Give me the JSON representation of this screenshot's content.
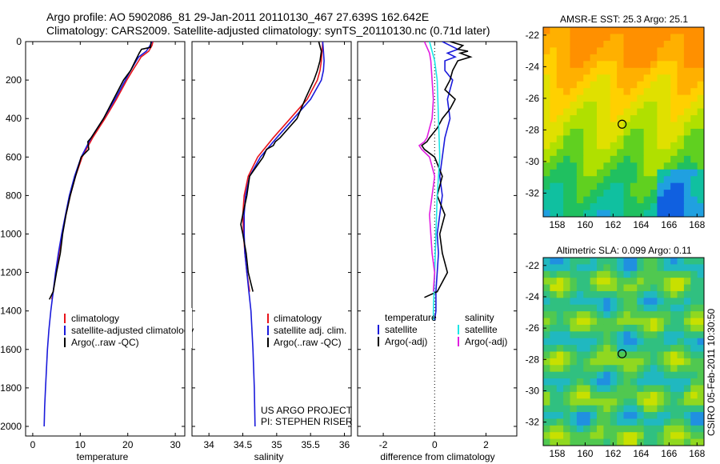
{
  "header": {
    "line1": "Argo profile: AO 5902086_81 29-Jan-2011 20110130_467 27.639S 162.642E",
    "line2": "Climatology: CARS2009. Satellite-adjusted climatology: synTS_20110130.nc (0.71d later)"
  },
  "footer": {
    "line1": "US ARGO PROJECT",
    "line2": "PI: STEPHEN RISER"
  },
  "side_label": "CSIRO 05-Feb-2011 10:30:50",
  "colors": {
    "climatology": "#e8141b",
    "satellite": "#1a1adb",
    "argo": "#000000",
    "satellite_salinity": "#1ce6e6",
    "argo_salinity": "#e11ee1"
  },
  "chart_data": [
    {
      "type": "line",
      "xlabel": "temperature",
      "ylim": [
        2050,
        0
      ],
      "xlim": [
        -1.5,
        32
      ],
      "xticks": [
        "0",
        "10",
        "20",
        "30"
      ],
      "yticks": [
        "0",
        "200",
        "400",
        "600",
        "800",
        "1000",
        "1200",
        "1400",
        "1600",
        "1800",
        "2000"
      ],
      "legend": [
        "climatology",
        "satellite-adjusted climatology",
        "Argo(..raw -QC)"
      ],
      "series": [
        {
          "name": "climatology",
          "y": [
            0,
            20,
            50,
            80,
            100,
            150,
            200,
            300,
            400,
            500,
            600,
            700,
            800,
            900,
            1000,
            1100,
            1200,
            1300,
            1340
          ],
          "x": [
            25.3,
            25.1,
            24.4,
            22.8,
            22.3,
            21.0,
            19.8,
            17.6,
            15.2,
            12.6,
            10.4,
            9.0,
            7.9,
            7.0,
            6.2,
            5.5,
            4.9,
            4.3,
            4.0
          ]
        },
        {
          "name": "satellite-adjusted climatology",
          "y": [
            0,
            20,
            50,
            80,
            100,
            150,
            200,
            300,
            400,
            500,
            600,
            700,
            800,
            900,
            1000,
            1100,
            1200,
            1300,
            1400,
            1500,
            1600,
            1700,
            1800,
            1900,
            2000
          ],
          "x": [
            25.1,
            24.7,
            23.9,
            22.3,
            21.8,
            20.6,
            19.5,
            17.3,
            14.9,
            12.3,
            10.2,
            8.8,
            7.7,
            6.9,
            6.1,
            5.4,
            4.8,
            4.3,
            3.8,
            3.4,
            3.1,
            2.9,
            2.7,
            2.5,
            2.4
          ]
        },
        {
          "name": "Argo(..raw -QC)",
          "y": [
            0,
            30,
            40,
            60,
            80,
            100,
            150,
            200,
            300,
            400,
            500,
            520,
            560,
            600,
            700,
            800,
            900,
            1000,
            1100,
            1200,
            1300,
            1340
          ],
          "x": [
            24.9,
            24.8,
            22.9,
            22.4,
            22.0,
            21.6,
            20.6,
            19.1,
            17.0,
            14.9,
            12.3,
            11.6,
            11.8,
            10.2,
            9.0,
            7.9,
            7.0,
            6.3,
            5.8,
            5.0,
            4.3,
            3.5
          ]
        }
      ]
    },
    {
      "type": "line",
      "xlabel": "salinity",
      "ylim": [
        2050,
        0
      ],
      "xlim": [
        33.75,
        36.1
      ],
      "xticks": [
        "34",
        "34.5",
        "35",
        "35.5",
        "36"
      ],
      "legend": [
        "climatology",
        "satellite adj. clim.",
        "Argo(..raw -QC)"
      ],
      "series": [
        {
          "name": "climatology",
          "y": [
            0,
            50,
            100,
            150,
            200,
            300,
            400,
            500,
            600,
            700,
            800,
            900,
            1000,
            1100,
            1200,
            1300
          ],
          "x": [
            35.68,
            35.67,
            35.66,
            35.64,
            35.6,
            35.45,
            35.2,
            34.95,
            34.72,
            34.58,
            34.52,
            34.5,
            34.51,
            34.53,
            34.56,
            34.6
          ]
        },
        {
          "name": "satellite adj. clim.",
          "y": [
            0,
            50,
            100,
            150,
            200,
            300,
            400,
            500,
            600,
            700,
            800,
            900,
            1000,
            1100,
            1200,
            1300,
            1400,
            1600,
            1800,
            2000
          ],
          "x": [
            35.68,
            35.69,
            35.7,
            35.69,
            35.66,
            35.5,
            35.25,
            35.0,
            34.76,
            34.6,
            34.54,
            34.52,
            34.52,
            34.53,
            34.56,
            34.59,
            34.62,
            34.65,
            34.67,
            34.68
          ]
        },
        {
          "name": "Argo(..raw -QC)",
          "y": [
            0,
            50,
            100,
            150,
            200,
            300,
            400,
            500,
            520,
            540,
            560,
            600,
            700,
            800,
            900,
            950,
            1000,
            1100,
            1200,
            1300
          ],
          "x": [
            35.62,
            35.66,
            35.64,
            35.6,
            35.55,
            35.42,
            35.3,
            35.05,
            34.98,
            34.95,
            34.85,
            34.8,
            34.6,
            34.56,
            34.5,
            34.47,
            34.5,
            34.55,
            34.58,
            34.65
          ]
        }
      ]
    },
    {
      "type": "line",
      "xlabel": "difference from climatology",
      "ylim": [
        2050,
        0
      ],
      "xlim": [
        -3,
        3.2
      ],
      "xticks": [
        "-2",
        "0",
        "2"
      ],
      "legend_temperature_title": "temperature",
      "legend_salinity_title": "salinity",
      "legend_temperature": [
        "satellite",
        "Argo(-adj)"
      ],
      "legend_salinity": [
        "satellite",
        "Argo(-adj)"
      ],
      "series": [
        {
          "name": "satellite",
          "group": "temperature",
          "y": [
            0,
            20,
            40,
            60,
            80,
            100,
            150,
            200,
            300,
            400,
            500,
            600,
            700,
            800,
            900,
            1000,
            1100,
            1200,
            1300,
            1400,
            1450
          ],
          "x": [
            0.3,
            0.6,
            0.9,
            0.5,
            0.8,
            0.4,
            0.4,
            0.7,
            0.5,
            0.6,
            0.4,
            0.3,
            0.2,
            0.3,
            0.2,
            0.1,
            0.15,
            0.1,
            0.05,
            0.05,
            0.0
          ]
        },
        {
          "name": "Argo(-adj)",
          "group": "temperature",
          "y": [
            0,
            20,
            40,
            50,
            60,
            80,
            100,
            150,
            200,
            250,
            300,
            350,
            400,
            450,
            500,
            520,
            540,
            560,
            600,
            700,
            800,
            900,
            1000,
            1100,
            1200,
            1250,
            1300,
            1330
          ],
          "x": [
            0.6,
            1.1,
            0.9,
            1.3,
            1.0,
            1.4,
            0.9,
            0.7,
            0.6,
            0.4,
            0.8,
            0.6,
            0.3,
            0.1,
            -0.2,
            -0.3,
            -0.5,
            -0.4,
            0.0,
            0.3,
            0.1,
            0.4,
            0.2,
            0.3,
            0.5,
            0.3,
            0.1,
            -0.4
          ]
        },
        {
          "name": "satellite",
          "group": "salinity",
          "y": [
            0,
            50,
            100,
            200,
            400,
            600,
            800,
            1000,
            1200,
            1400,
            1450
          ],
          "x": [
            -0.2,
            -0.1,
            0.0,
            0.1,
            0.15,
            0.2,
            0.1,
            0.05,
            0.0,
            -0.05,
            -0.05
          ]
        },
        {
          "name": "Argo(-adj)",
          "group": "salinity",
          "y": [
            0,
            30,
            60,
            100,
            200,
            300,
            400,
            500,
            520,
            540,
            560,
            600,
            700,
            800,
            900,
            1000,
            1100,
            1200,
            1300
          ],
          "x": [
            -0.4,
            -0.3,
            -0.2,
            -0.15,
            -0.1,
            -0.05,
            -0.1,
            -0.3,
            -0.4,
            -0.6,
            -0.5,
            -0.2,
            0.0,
            -0.1,
            -0.2,
            -0.15,
            -0.1,
            0.0,
            -0.05
          ]
        }
      ]
    },
    {
      "type": "heatmap",
      "title": "AMSR-E SST: 25.3 Argo: 25.1",
      "xlim": [
        157,
        168.5
      ],
      "ylim": [
        -33.5,
        -21.5
      ],
      "xticks": [
        "158",
        "160",
        "162",
        "164",
        "166",
        "168"
      ],
      "yticks": [
        "-22",
        "-24",
        "-26",
        "-28",
        "-30",
        "-32"
      ],
      "marker": {
        "lon": 162.642,
        "lat": -27.639
      }
    },
    {
      "type": "heatmap",
      "title": "Altimetric SLA: 0.099 Argo: 0.11",
      "xlim": [
        157,
        168.5
      ],
      "ylim": [
        -33.5,
        -21.5
      ],
      "xticks": [
        "158",
        "160",
        "162",
        "164",
        "166",
        "168"
      ],
      "yticks": [
        "-22",
        "-24",
        "-26",
        "-28",
        "-30",
        "-32"
      ],
      "marker": {
        "lon": 162.642,
        "lat": -27.639
      }
    }
  ]
}
